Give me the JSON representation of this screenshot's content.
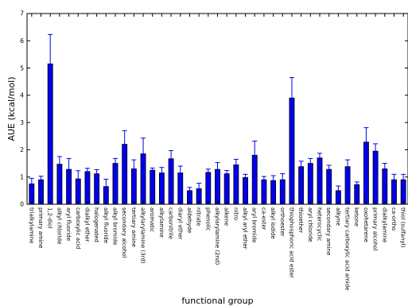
{
  "chart_data": {
    "type": "bar",
    "xlabel": "functional group",
    "ylabel": "AUE (kcal/mol)",
    "ylim": [
      0,
      7
    ],
    "yticks": [
      0,
      1,
      2,
      3,
      4,
      5,
      6,
      7
    ],
    "grid": false,
    "legend": "none",
    "bar_color": "#0000ee",
    "error_color": "#0000ee",
    "categories": [
      "trialkylamine",
      "primary amine",
      "1,2-diol",
      "alkyl chloride",
      "aryl fluoride",
      "carboxylic acid",
      "dialkyl ether",
      "halogenated",
      "alkyl fluoride",
      "alkyl bromide",
      "secondary alcohol",
      "tertiary amine",
      "alkylarylamine (3rd)",
      "aromatic",
      "alkylamine",
      "carbonitrile",
      "diaryl ether",
      "aldehyde",
      "nitrate",
      "phenolic",
      "alkylarylamine (2nd)",
      "alkene",
      "nitro",
      "alkyl aryl ether",
      "aryl bromide",
      "ca-ester",
      "alkyl iodide",
      "orthoester",
      "thiophosphoric acid ester",
      "thioether",
      "aryl chloride",
      "heterocyclic",
      "secondary amine",
      "alkyne",
      "tertiary carboxylic acid amide",
      "ketone",
      "oxohetarene",
      "primary alcohol",
      "dialkylamine",
      "ca-ortho",
      "thiol (sulfanyl)"
    ],
    "values": [
      0.75,
      0.9,
      5.15,
      1.47,
      1.28,
      0.93,
      1.2,
      1.12,
      0.65,
      1.5,
      2.2,
      1.3,
      1.85,
      1.25,
      1.15,
      1.67,
      1.15,
      0.5,
      0.57,
      1.17,
      1.28,
      1.12,
      1.45,
      0.98,
      1.8,
      0.9,
      0.87,
      0.9,
      3.9,
      1.38,
      1.5,
      1.7,
      1.28,
      0.5,
      1.38,
      0.72,
      2.28,
      1.95,
      1.3,
      0.9,
      0.9
    ],
    "errors": [
      0.2,
      0.13,
      1.08,
      0.28,
      0.4,
      0.3,
      0.12,
      0.15,
      0.27,
      0.18,
      0.5,
      0.33,
      0.58,
      0.08,
      0.2,
      0.3,
      0.25,
      0.12,
      0.2,
      0.12,
      0.25,
      0.12,
      0.2,
      0.12,
      0.52,
      0.12,
      0.18,
      0.22,
      0.75,
      0.2,
      0.18,
      0.17,
      0.15,
      0.17,
      0.25,
      0.1,
      0.53,
      0.27,
      0.2,
      0.2,
      0.2
    ]
  }
}
